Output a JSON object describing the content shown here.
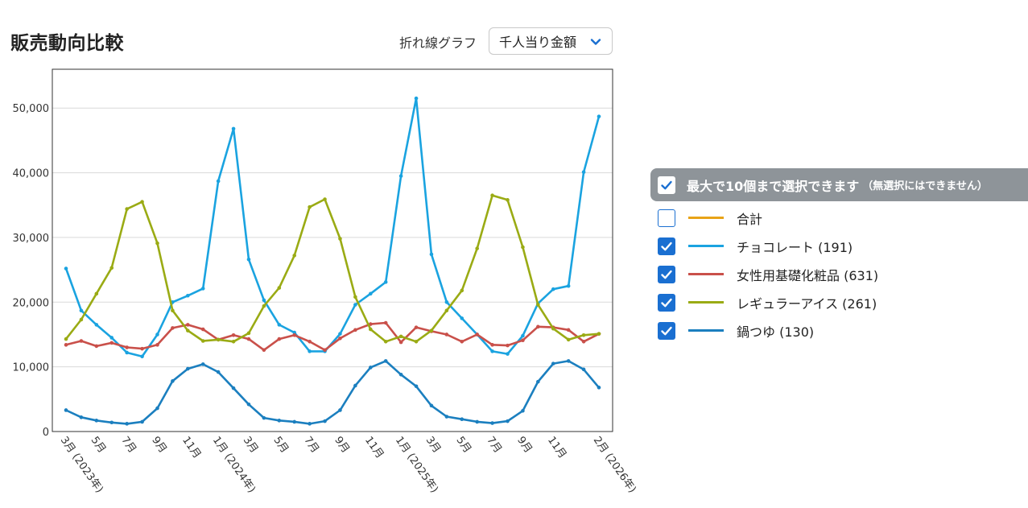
{
  "title": "販売動向比較",
  "chart_type_label": "折れ線グラフ",
  "metric_select": {
    "selected": "千人当り金額"
  },
  "legend": {
    "header_main": "最大で10個まで選択できます",
    "header_note": "（無選択にはできません）",
    "items": [
      {
        "label": "合計",
        "color": "#e8a317",
        "checked": false
      },
      {
        "label": "チョコレート (191)",
        "color": "#1aa3e0",
        "checked": true
      },
      {
        "label": "女性用基礎化粧品 (631)",
        "color": "#c9504a",
        "checked": true
      },
      {
        "label": "レギュラーアイス (261)",
        "color": "#9aab14",
        "checked": true
      },
      {
        "label": "鍋つゆ (130)",
        "color": "#1b7fbf",
        "checked": true
      }
    ]
  },
  "chart_data": {
    "type": "line",
    "x": [
      "2023-03",
      "2023-04",
      "2023-05",
      "2023-06",
      "2023-07",
      "2023-08",
      "2023-09",
      "2023-10",
      "2023-11",
      "2023-12",
      "2024-01",
      "2024-02",
      "2024-03",
      "2024-04",
      "2024-05",
      "2024-06",
      "2024-07",
      "2024-08",
      "2024-09",
      "2024-10",
      "2024-11",
      "2024-12",
      "2025-01",
      "2025-02",
      "2025-03",
      "2025-04",
      "2025-05",
      "2025-06",
      "2025-07",
      "2025-08",
      "2025-09",
      "2025-10",
      "2025-11",
      "2025-12",
      "2026-01",
      "2026-02"
    ],
    "tick_labels": [
      {
        "index": 0,
        "label": "3月 (2023年)"
      },
      {
        "index": 2,
        "label": "5月"
      },
      {
        "index": 4,
        "label": "7月"
      },
      {
        "index": 6,
        "label": "9月"
      },
      {
        "index": 8,
        "label": "11月"
      },
      {
        "index": 10,
        "label": "1月 (2024年)"
      },
      {
        "index": 12,
        "label": "3月"
      },
      {
        "index": 14,
        "label": "5月"
      },
      {
        "index": 16,
        "label": "7月"
      },
      {
        "index": 18,
        "label": "9月"
      },
      {
        "index": 20,
        "label": "11月"
      },
      {
        "index": 22,
        "label": "1月 (2025年)"
      },
      {
        "index": 24,
        "label": "3月"
      },
      {
        "index": 26,
        "label": "5月"
      },
      {
        "index": 28,
        "label": "7月"
      },
      {
        "index": 30,
        "label": "9月"
      },
      {
        "index": 32,
        "label": "11月"
      },
      {
        "index": 35,
        "label": "2月 (2026年)"
      }
    ],
    "ylim": [
      0,
      56000
    ],
    "yticks": [
      0,
      10000,
      20000,
      30000,
      40000,
      50000
    ],
    "ytick_labels": [
      "0",
      "10,000",
      "20,000",
      "30,000",
      "40,000",
      "50,000"
    ],
    "grid": true,
    "series": [
      {
        "name": "チョコレート (191)",
        "color": "#1aa3e0",
        "values": [
          25200,
          18700,
          16500,
          14500,
          12200,
          11600,
          15000,
          20000,
          21000,
          22100,
          38700,
          46800,
          26600,
          20300,
          16500,
          15300,
          12400,
          12400,
          15100,
          19600,
          21300,
          23100,
          39500,
          51500,
          27400,
          20000,
          17500,
          15000,
          12400,
          12000,
          14800,
          19800,
          22000,
          22500,
          40100,
          48700
        ]
      },
      {
        "name": "女性用基礎化粧品 (631)",
        "color": "#c9504a",
        "values": [
          13400,
          14000,
          13200,
          13700,
          13000,
          12800,
          13400,
          16000,
          16500,
          15800,
          14200,
          14900,
          14300,
          12600,
          14300,
          14900,
          13900,
          12600,
          14400,
          15700,
          16600,
          16800,
          13800,
          16100,
          15500,
          15000,
          13900,
          15000,
          13400,
          13300,
          14100,
          16200,
          16100,
          15700,
          13900,
          15100
        ]
      },
      {
        "name": "レギュラーアイス (261)",
        "color": "#9aab14",
        "values": [
          14300,
          17300,
          21300,
          25300,
          34400,
          35500,
          29100,
          18700,
          15600,
          14000,
          14200,
          13900,
          15200,
          19400,
          22200,
          27200,
          34700,
          35900,
          29800,
          20800,
          15800,
          13900,
          14700,
          13900,
          15600,
          18700,
          21800,
          28300,
          36500,
          35800,
          28500,
          19600,
          15900,
          14200,
          14900,
          15100
        ]
      },
      {
        "name": "鍋つゆ (130)",
        "color": "#1b7fbf",
        "values": [
          3300,
          2200,
          1700,
          1400,
          1200,
          1500,
          3600,
          7800,
          9700,
          10400,
          9200,
          6700,
          4200,
          2100,
          1700,
          1500,
          1200,
          1600,
          3300,
          7100,
          9900,
          10900,
          8800,
          7000,
          4000,
          2300,
          1900,
          1500,
          1300,
          1600,
          3200,
          7700,
          10500,
          10900,
          9600,
          6800
        ]
      }
    ]
  }
}
